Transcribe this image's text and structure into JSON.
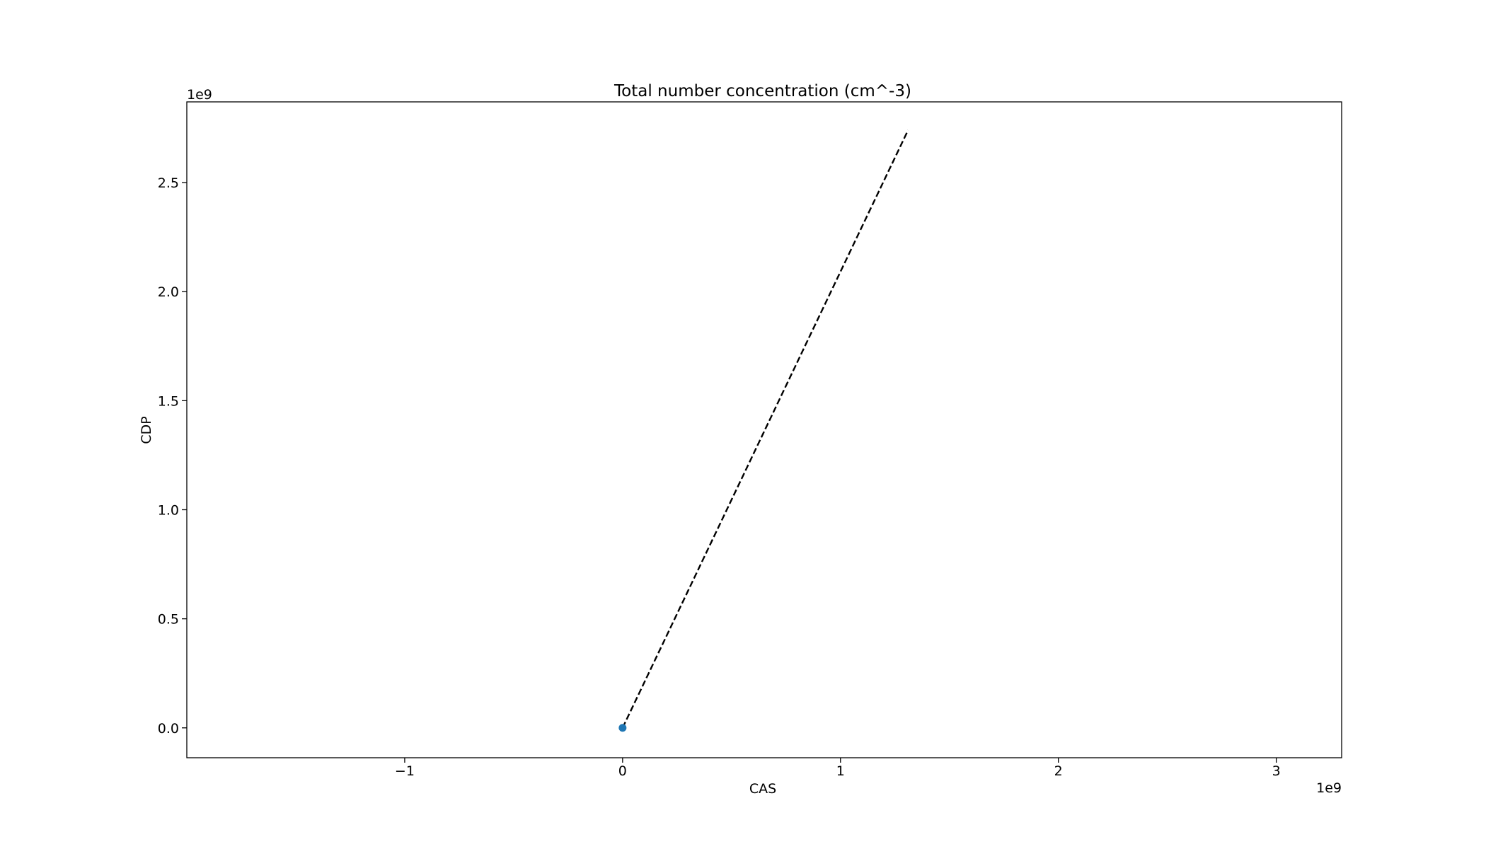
{
  "chart_data": {
    "type": "scatter",
    "title": "Total number concentration (cm^-3)",
    "xlabel": "CAS",
    "ylabel": "CDP",
    "x_offset_label": "1e9",
    "y_offset_label": "1e9",
    "xlim": [
      -2.0,
      3.3
    ],
    "ylim": [
      -0.137,
      2.87
    ],
    "xticks": [
      -1,
      0,
      1,
      2,
      3
    ],
    "xtick_labels": [
      "−1",
      "0",
      "1",
      "2",
      "3"
    ],
    "yticks": [
      0.0,
      0.5,
      1.0,
      1.5,
      2.0,
      2.5
    ],
    "ytick_labels": [
      "0.0",
      "0.5",
      "1.0",
      "1.5",
      "2.0",
      "2.5"
    ],
    "grid": false,
    "series": [
      {
        "type": "scatter",
        "color": "#1f77b4",
        "x": [
          0.0
        ],
        "y": [
          0.0
        ]
      },
      {
        "type": "line",
        "style": "dashed",
        "color": "#000000",
        "x": [
          0.0,
          1.31
        ],
        "y": [
          0.0,
          2.74
        ]
      }
    ]
  }
}
